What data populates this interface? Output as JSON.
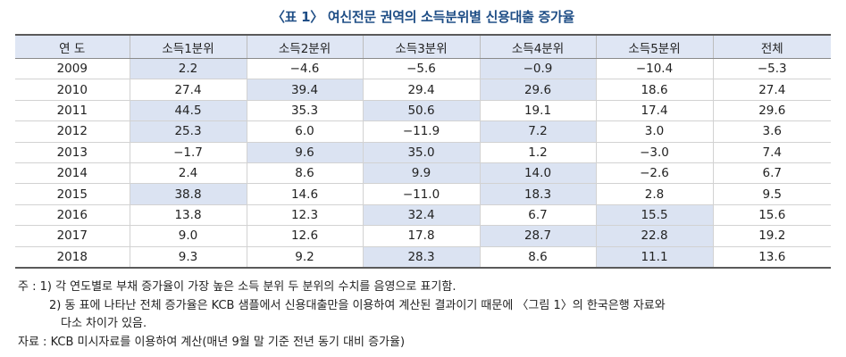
{
  "title": "〈표 1〉 여신전문 권역의 소득분위별 신용대출 증가율",
  "table": {
    "headers": [
      "연 도",
      "소득1분위",
      "소득2분위",
      "소득3분위",
      "소득4분위",
      "소득5분위",
      "전체"
    ],
    "rows": [
      {
        "cells": [
          "2009",
          "2.2",
          "−4.6",
          "−5.6",
          "−0.9",
          "−10.4",
          "−5.3"
        ],
        "highlight": [
          1,
          4
        ]
      },
      {
        "cells": [
          "2010",
          "27.4",
          "39.4",
          "29.4",
          "29.6",
          "18.6",
          "27.4"
        ],
        "highlight": [
          2,
          4
        ]
      },
      {
        "cells": [
          "2011",
          "44.5",
          "35.3",
          "50.6",
          "19.1",
          "17.4",
          "29.6"
        ],
        "highlight": [
          1,
          3
        ]
      },
      {
        "cells": [
          "2012",
          "25.3",
          "6.0",
          "−11.9",
          "7.2",
          "3.0",
          "3.6"
        ],
        "highlight": [
          1,
          4
        ]
      },
      {
        "cells": [
          "2013",
          "−1.7",
          "9.6",
          "35.0",
          "1.2",
          "−3.0",
          "7.4"
        ],
        "highlight": [
          2,
          3
        ]
      },
      {
        "cells": [
          "2014",
          "2.4",
          "8.6",
          "9.9",
          "14.0",
          "−2.6",
          "6.7"
        ],
        "highlight": [
          3,
          4
        ]
      },
      {
        "cells": [
          "2015",
          "38.8",
          "14.6",
          "−11.0",
          "18.3",
          "2.8",
          "9.5"
        ],
        "highlight": [
          1,
          4
        ]
      },
      {
        "cells": [
          "2016",
          "13.8",
          "12.3",
          "32.4",
          "6.7",
          "15.5",
          "15.6"
        ],
        "highlight": [
          3,
          5
        ]
      },
      {
        "cells": [
          "2017",
          "9.0",
          "12.6",
          "17.8",
          "28.7",
          "22.8",
          "19.2"
        ],
        "highlight": [
          4,
          5
        ]
      },
      {
        "cells": [
          "2018",
          "9.3",
          "9.2",
          "28.3",
          "8.6",
          "11.1",
          "13.6"
        ],
        "highlight": [
          3,
          5
        ]
      }
    ]
  },
  "notes": {
    "line1": "주 : 1) 각 연도별로 부채 증가율이 가장 높은 소득 분위 두 분위의 수치를 음영으로 표기함.",
    "line2": "2) 동 표에 나타난 전체 증가율은 KCB 샘플에서 신용대출만을 이용하여 계산된 결과이기 때문에 〈그림 1〉의 한국은행 자료와",
    "line3": "다소 차이가 있음.",
    "line4": "자료 : KCB 미시자료를 이용하여 계산(매년 9월 말 기준 전년 동기 대비 증가율)"
  },
  "colors": {
    "title": "#1f4e86",
    "header_bg": "#dfe6f4",
    "highlight_bg": "#dbe3f2"
  }
}
